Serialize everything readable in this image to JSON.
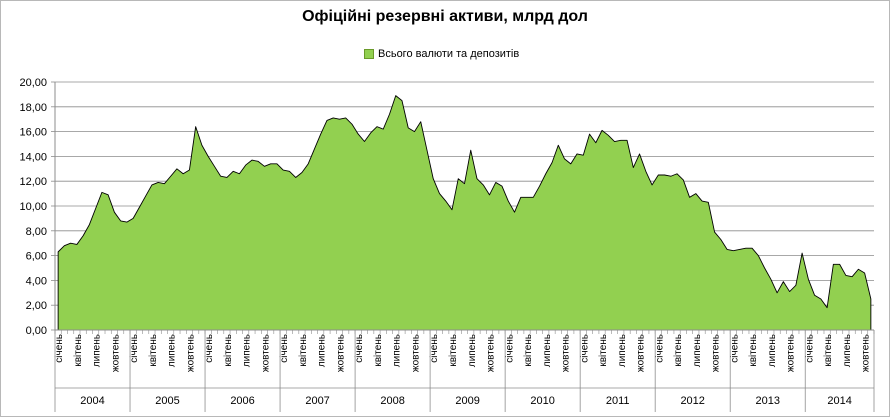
{
  "chart_data": {
    "type": "area",
    "title": "Офіційні резервні активи, млрд дол",
    "legend_position": "top",
    "series": [
      {
        "name": "Всього валюти та депозитів",
        "color": "#92d050",
        "values": [
          6.3,
          6.8,
          7.0,
          6.9,
          7.6,
          8.5,
          9.8,
          11.1,
          10.9,
          9.5,
          8.8,
          8.7,
          9.0,
          9.9,
          10.8,
          11.7,
          11.9,
          11.8,
          12.4,
          13.0,
          12.6,
          12.9,
          16.4,
          14.9,
          14.0,
          13.2,
          12.4,
          12.3,
          12.8,
          12.6,
          13.3,
          13.7,
          13.6,
          13.2,
          13.4,
          13.4,
          12.9,
          12.8,
          12.3,
          12.7,
          13.4,
          14.6,
          15.8,
          16.9,
          17.1,
          17.0,
          17.1,
          16.6,
          15.8,
          15.2,
          15.9,
          16.4,
          16.2,
          17.4,
          18.9,
          18.5,
          16.3,
          16.0,
          16.8,
          14.5,
          12.2,
          11.0,
          10.4,
          9.7,
          12.2,
          11.8,
          14.5,
          12.2,
          11.7,
          10.9,
          11.9,
          11.6,
          10.4,
          9.5,
          10.7,
          10.7,
          10.7,
          11.6,
          12.6,
          13.5,
          14.9,
          13.8,
          13.4,
          14.2,
          14.1,
          15.8,
          15.1,
          16.1,
          15.7,
          15.2,
          15.3,
          15.3,
          13.1,
          14.2,
          12.8,
          11.7,
          12.5,
          12.5,
          12.4,
          12.6,
          12.1,
          10.7,
          11.0,
          10.4,
          10.3,
          7.9,
          7.3,
          6.5,
          6.4,
          6.5,
          6.6,
          6.6,
          6.0,
          5.0,
          4.1,
          3.0,
          3.9,
          3.1,
          3.6,
          6.2,
          4.1,
          2.8,
          2.5,
          1.8,
          5.3,
          5.3,
          4.4,
          4.3,
          4.9,
          4.6,
          2.5
        ]
      }
    ],
    "ylim": [
      0,
      20
    ],
    "yticks": [
      "0,00",
      "2,00",
      "4,00",
      "6,00",
      "8,00",
      "10,00",
      "12,00",
      "14,00",
      "16,00",
      "18,00",
      "20,00"
    ],
    "grid": true,
    "month_labels": [
      "січень",
      "квітень",
      "липень",
      "жовтень"
    ],
    "years": [
      "2004",
      "2005",
      "2006",
      "2007",
      "2008",
      "2009",
      "2010",
      "2011",
      "2012",
      "2013",
      "2014"
    ]
  }
}
